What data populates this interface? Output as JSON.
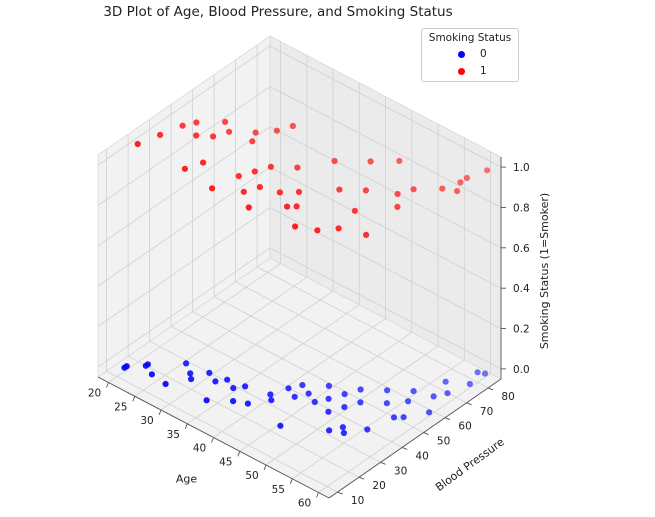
{
  "chart_data": {
    "type": "scatter",
    "title": "3D Plot of Age, Blood Pressure, and Smoking Status",
    "xlabel": "Age",
    "ylabel": "Blood Pressure",
    "zlabel": "Smoking Status (1=Smoker)",
    "xlim": [
      18,
      62
    ],
    "ylim": [
      6,
      86
    ],
    "zlim": [
      -0.05,
      1.05
    ],
    "xticks": [
      "20",
      "25",
      "30",
      "35",
      "40",
      "45",
      "50",
      "55",
      "60"
    ],
    "yticks": [
      "10",
      "20",
      "30",
      "40",
      "50",
      "60",
      "70",
      "80"
    ],
    "zticks": [
      "0.0",
      "0.2",
      "0.4",
      "0.6",
      "0.8",
      "1.0"
    ],
    "grid": true,
    "legend": {
      "title": "Smoking Status",
      "placement": "top-right",
      "entries": [
        {
          "label": "0",
          "color": "#0000ff"
        },
        {
          "label": "1",
          "color": "#ff0000"
        }
      ]
    },
    "series": [
      {
        "name": "0",
        "color": "#0000ff",
        "points": [
          [
            21,
            11,
            0
          ],
          [
            21,
            12,
            0
          ],
          [
            23,
            16,
            0
          ],
          [
            23,
            17,
            0
          ],
          [
            25,
            14,
            0
          ],
          [
            28,
            13,
            0
          ],
          [
            27,
            25,
            0
          ],
          [
            29,
            22,
            0
          ],
          [
            30,
            20,
            0
          ],
          [
            31,
            26,
            0
          ],
          [
            33,
            24,
            0
          ],
          [
            34,
            27,
            0
          ],
          [
            35,
            15,
            0
          ],
          [
            36,
            25,
            0
          ],
          [
            37,
            28,
            0
          ],
          [
            38,
            20,
            0
          ],
          [
            40,
            22,
            0
          ],
          [
            41,
            30,
            0
          ],
          [
            42,
            28,
            0
          ],
          [
            42,
            36,
            0
          ],
          [
            43,
            40,
            0
          ],
          [
            44,
            34,
            0
          ],
          [
            45,
            38,
            0
          ],
          [
            46,
            45,
            0
          ],
          [
            47,
            20,
            0
          ],
          [
            47,
            36,
            0
          ],
          [
            48,
            40,
            0
          ],
          [
            49,
            45,
            0
          ],
          [
            50,
            50,
            0
          ],
          [
            50,
            35,
            0
          ],
          [
            51,
            40,
            0
          ],
          [
            52,
            45,
            0
          ],
          [
            53,
            28,
            0
          ],
          [
            53,
            55,
            0
          ],
          [
            54,
            32,
            0
          ],
          [
            55,
            30,
            0
          ],
          [
            55,
            50,
            0
          ],
          [
            56,
            60,
            0
          ],
          [
            57,
            36,
            0
          ],
          [
            57,
            55,
            0
          ],
          [
            58,
            70,
            0
          ],
          [
            58,
            46,
            0
          ],
          [
            59,
            48,
            0
          ],
          [
            59,
            62,
            0
          ],
          [
            60,
            66,
            0
          ],
          [
            60,
            80,
            0
          ],
          [
            61,
            74,
            0
          ],
          [
            61,
            55,
            0
          ],
          [
            61,
            81,
            0
          ]
        ]
      },
      {
        "name": "1",
        "color": "#ff0000",
        "points": [
          [
            19,
            22,
            1
          ],
          [
            20,
            30,
            1
          ],
          [
            21,
            38,
            1
          ],
          [
            22,
            42,
            1
          ],
          [
            24,
            37,
            1
          ],
          [
            25,
            48,
            1
          ],
          [
            26,
            40,
            1
          ],
          [
            27,
            45,
            1
          ],
          [
            28,
            22,
            1
          ],
          [
            29,
            28,
            1
          ],
          [
            30,
            50,
            1
          ],
          [
            31,
            46,
            1
          ],
          [
            32,
            55,
            1
          ],
          [
            33,
            60,
            1
          ],
          [
            34,
            20,
            1
          ],
          [
            35,
            30,
            1
          ],
          [
            36,
            35,
            1
          ],
          [
            37,
            40,
            1
          ],
          [
            38,
            25,
            1
          ],
          [
            39,
            30,
            1
          ],
          [
            40,
            45,
            1
          ],
          [
            41,
            20,
            1
          ],
          [
            42,
            32,
            1
          ],
          [
            43,
            55,
            1
          ],
          [
            44,
            36,
            1
          ],
          [
            45,
            28,
            1
          ],
          [
            46,
            30,
            1
          ],
          [
            47,
            62,
            1
          ],
          [
            48,
            45,
            1
          ],
          [
            49,
            22,
            1
          ],
          [
            50,
            68,
            1
          ],
          [
            51,
            50,
            1
          ],
          [
            52,
            25,
            1
          ],
          [
            53,
            40,
            1
          ],
          [
            54,
            30,
            1
          ],
          [
            55,
            55,
            1
          ],
          [
            56,
            60,
            1
          ],
          [
            57,
            50,
            1
          ],
          [
            58,
            33,
            1
          ],
          [
            59,
            66,
            1
          ],
          [
            60,
            75,
            1
          ],
          [
            60,
            72,
            1
          ],
          [
            61,
            82,
            1
          ],
          [
            61,
            68,
            1
          ]
        ]
      }
    ]
  }
}
